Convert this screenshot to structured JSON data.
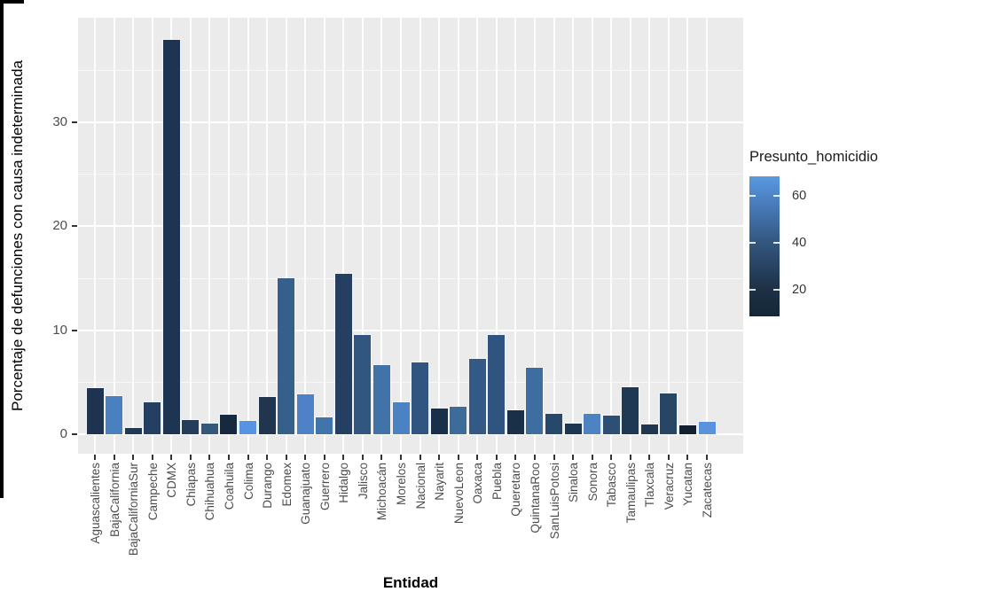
{
  "figure": {
    "background": "#ffffff"
  },
  "chart_data": {
    "type": "bar",
    "title": "",
    "xlabel": "Entidad",
    "ylabel": "Porcentaje de defunciones con causa indeterminada",
    "ylim": [
      0,
      40
    ],
    "yticks": [
      0,
      10,
      20,
      30
    ],
    "yticks_minor": [
      5,
      15,
      25,
      35
    ],
    "grid": "on",
    "panel_background": "#ebebeb",
    "gridline_color": "#ffffff",
    "legend_position": "right",
    "categories": [
      "Aguascalientes",
      "BajaCalifornia",
      "BajaCaliforniaSur",
      "Campeche",
      "CDMX",
      "Chiapas",
      "Chihuahua",
      "Coahuila",
      "Colima",
      "Durango",
      "Edomex",
      "Guanajuato",
      "Guerrero",
      "Hidalgo",
      "Jalisco",
      "Michoacán",
      "Morelos",
      "Nacional",
      "Nayarit",
      "NuevoLeon",
      "Oaxaca",
      "Puebla",
      "Queretaro",
      "QuintanaRoo",
      "SanLuisPotosi",
      "Sinaloa",
      "Sonora",
      "Tabasco",
      "Tamaulipas",
      "Tlaxcala",
      "Veracruz",
      "Yucatan",
      "Zacatecas"
    ],
    "values": [
      4.4,
      3.7,
      0.6,
      3.1,
      37.9,
      1.4,
      1.0,
      1.9,
      1.3,
      3.6,
      15.0,
      3.8,
      1.6,
      15.4,
      9.5,
      6.6,
      3.1,
      6.9,
      2.5,
      2.6,
      7.2,
      9.5,
      2.3,
      6.4,
      2.0,
      1.0,
      2.0,
      1.8,
      4.5,
      0.9,
      3.9,
      0.85,
      1.2
    ],
    "fills": [
      "#1d3350",
      "#4a80c0",
      "#1d3b59",
      "#243f61",
      "#1d3452",
      "#253c5a",
      "#34587c",
      "#17293f",
      "#5793e3",
      "#22354e",
      "#36608c",
      "#4d82c8",
      "#3f74ad",
      "#253f63",
      "#315680",
      "#4273a8",
      "#4a82c4",
      "#2f5580",
      "#1a2f4a",
      "#3d6b9a",
      "#335a85",
      "#2f5480",
      "#1a3048",
      "#3e6da0",
      "#27486b",
      "#1c3550",
      "#4d83c3",
      "#2d4f73",
      "#1f3854",
      "#203752",
      "#264663",
      "#13202f",
      "#5b92dd"
    ],
    "legend": {
      "title": "Presunto_homicidio",
      "ticks": [
        {
          "label": "60",
          "pos": 0.14
        },
        {
          "label": "40",
          "pos": 0.475
        },
        {
          "label": "20",
          "pos": 0.81
        }
      ],
      "gradient": [
        {
          "color": "#5b99dd",
          "pos": 0
        },
        {
          "color": "#4d84c8",
          "pos": 0.14
        },
        {
          "color": "#33567e",
          "pos": 0.475
        },
        {
          "color": "#1d3046",
          "pos": 0.81
        },
        {
          "color": "#142636",
          "pos": 1
        }
      ]
    }
  }
}
